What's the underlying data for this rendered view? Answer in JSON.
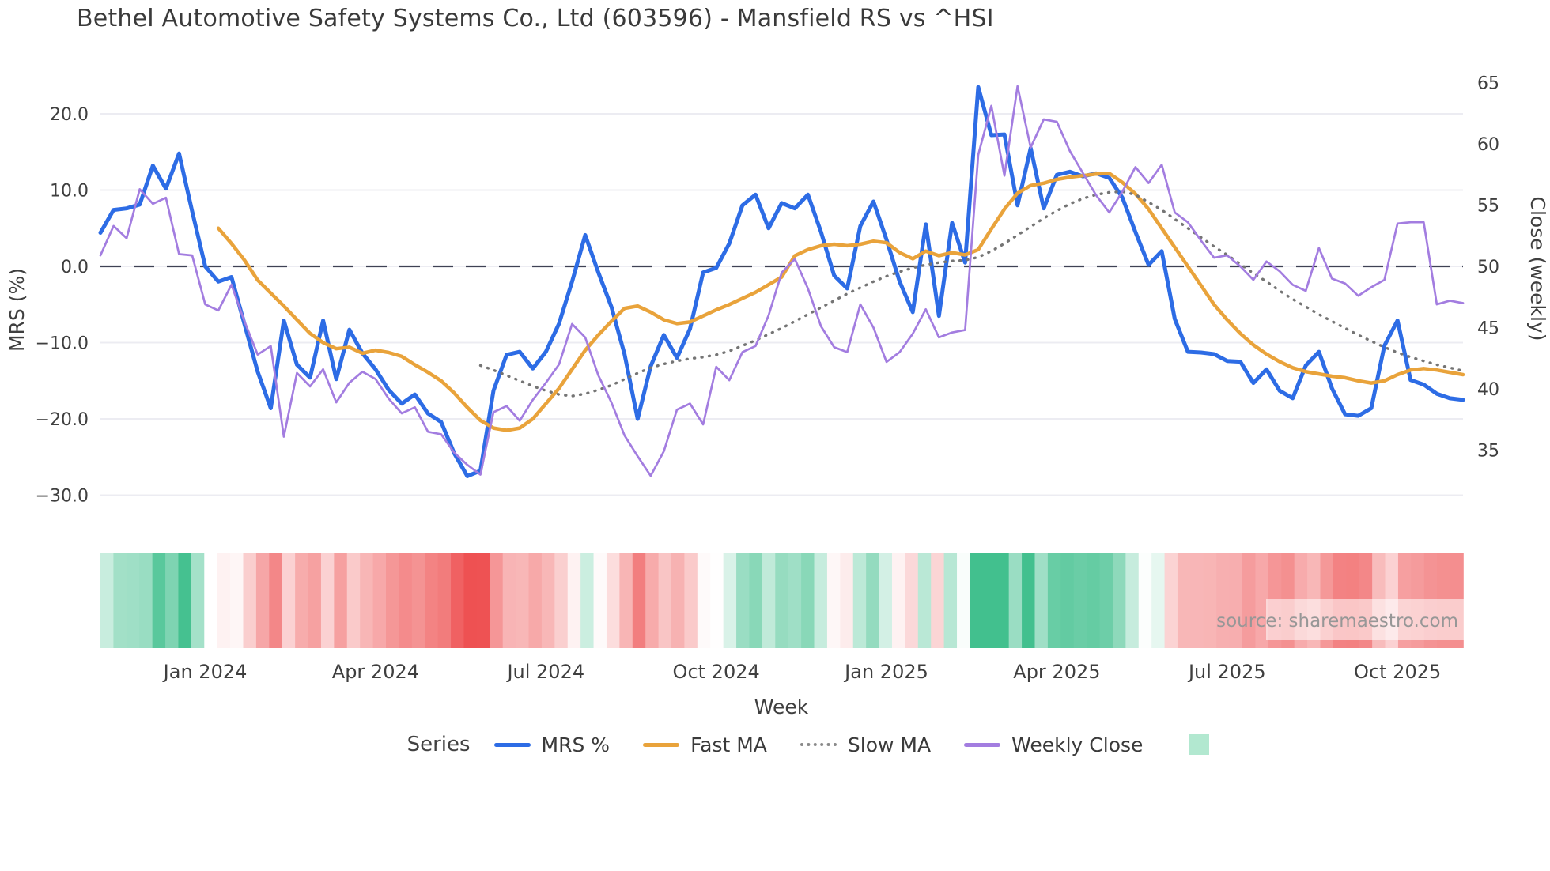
{
  "title": "Bethel Automotive Safety Systems Co., Ltd (603596) - Mansfield RS vs ^HSI",
  "source_note": "source: sharemaestro.com",
  "axes": {
    "left": {
      "title": "MRS (%)",
      "tick_labels": [
        "20.0",
        "10.0",
        "0.0",
        "−10.0",
        "−20.0",
        "−30.0"
      ],
      "tick_values": [
        20,
        10,
        0,
        -10,
        -20,
        -30
      ]
    },
    "right": {
      "title": "Close (weekly)",
      "tick_labels": [
        "65",
        "60",
        "55",
        "50",
        "45",
        "40",
        "35"
      ],
      "tick_values": [
        65,
        60,
        55,
        50,
        45,
        40,
        35
      ]
    },
    "x": {
      "title": "Week",
      "ticks": [
        {
          "week": 8,
          "label": "Jan 2024"
        },
        {
          "week": 21,
          "label": "Apr 2024"
        },
        {
          "week": 34,
          "label": "Jul 2024"
        },
        {
          "week": 47,
          "label": "Oct 2024"
        },
        {
          "week": 60,
          "label": "Jan 2025"
        },
        {
          "week": 73,
          "label": "Apr 2025"
        },
        {
          "week": 86,
          "label": "Jul 2025"
        },
        {
          "week": 99,
          "label": "Oct 2025"
        }
      ]
    }
  },
  "legend": {
    "title": "Series",
    "entries": [
      {
        "label": "MRS %",
        "style": "solid",
        "color": "#2d6ce5"
      },
      {
        "label": "Fast MA",
        "style": "solid",
        "color": "#e9a33b"
      },
      {
        "label": "Slow MA",
        "style": "dotted",
        "color": "#8a8a8a"
      },
      {
        "label": "Weekly Close",
        "style": "solid",
        "color": "#a37de0"
      }
    ],
    "heat_swatch_color": "#b2e8d0"
  },
  "chart_data": {
    "type": "line",
    "x_unit": "week_index",
    "n_weeks": 105,
    "zero_line": {
      "value": 0,
      "style": "dashed",
      "color": "#3f4254"
    },
    "grid_color": "#ececf2",
    "series": [
      {
        "name": "MRS %",
        "axis": "left",
        "color": "#2d6ce5",
        "style": "solid",
        "width": 5,
        "values": [
          4.4,
          7.4,
          7.6,
          8.1,
          13.2,
          10.2,
          14.8,
          7.2,
          0.0,
          -2.0,
          -1.4,
          -7.6,
          -13.8,
          -18.6,
          -7.1,
          -12.9,
          -14.6,
          -7.1,
          -14.8,
          -8.3,
          -11.4,
          -13.5,
          -16.2,
          -18.0,
          -16.8,
          -19.3,
          -20.4,
          -24.5,
          -27.5,
          -26.8,
          -16.3,
          -11.6,
          -11.2,
          -13.4,
          -11.2,
          -7.5,
          -2.0,
          4.1,
          -0.8,
          -5.3,
          -11.5,
          -20.0,
          -13.1,
          -9.0,
          -12.0,
          -8.2,
          -0.8,
          -0.2,
          3.0,
          8.0,
          9.4,
          5.0,
          8.3,
          7.6,
          9.4,
          4.5,
          -1.2,
          -2.9,
          5.3,
          8.5,
          3.5,
          -2.0,
          -6.0,
          5.5,
          -6.5,
          5.7,
          0.5,
          23.5,
          17.2,
          17.3,
          8.0,
          15.5,
          7.6,
          12.0,
          12.4,
          11.8,
          12.2,
          11.6,
          9.0,
          4.5,
          0.2,
          2.0,
          -6.9,
          -11.2,
          -11.3,
          -11.5,
          -12.4,
          -12.5,
          -15.3,
          -13.5,
          -16.3,
          -17.3,
          -13.0,
          -11.2,
          -16.0,
          -19.4,
          -19.6,
          -18.6,
          -10.4,
          -7.1,
          -14.9,
          -15.5,
          -16.7,
          -17.3,
          -17.5
        ]
      },
      {
        "name": "Fast MA",
        "axis": "left",
        "color": "#e9a33b",
        "style": "solid",
        "width": 4.5,
        "values": [
          null,
          null,
          null,
          null,
          null,
          null,
          null,
          null,
          null,
          5.0,
          3.0,
          0.8,
          -1.8,
          -3.5,
          -5.2,
          -7.0,
          -8.8,
          -10.0,
          -10.8,
          -10.6,
          -11.4,
          -11.0,
          -11.3,
          -11.8,
          -12.9,
          -13.9,
          -15.0,
          -16.6,
          -18.5,
          -20.2,
          -21.2,
          -21.5,
          -21.2,
          -20.0,
          -18.0,
          -16.0,
          -13.5,
          -11.0,
          -9.0,
          -7.2,
          -5.5,
          -5.2,
          -6.0,
          -7.0,
          -7.5,
          -7.3,
          -6.5,
          -5.7,
          -5.0,
          -4.2,
          -3.4,
          -2.4,
          -1.4,
          1.4,
          2.2,
          2.7,
          2.9,
          2.7,
          2.9,
          3.3,
          3.1,
          1.8,
          1.0,
          2.0,
          1.4,
          1.8,
          1.5,
          2.2,
          4.9,
          7.5,
          9.6,
          10.6,
          10.9,
          11.4,
          11.7,
          11.9,
          12.1,
          12.2,
          11.0,
          9.5,
          7.5,
          5.0,
          2.5,
          0.0,
          -2.5,
          -5.0,
          -7.0,
          -8.8,
          -10.3,
          -11.5,
          -12.5,
          -13.3,
          -13.8,
          -14.1,
          -14.4,
          -14.6,
          -15.0,
          -15.3,
          -15.0,
          -14.2,
          -13.6,
          -13.4,
          -13.6,
          -13.9,
          -14.2
        ]
      },
      {
        "name": "Slow MA",
        "axis": "left",
        "color": "#757575",
        "style": "dotted",
        "width": 3.4,
        "values": [
          null,
          null,
          null,
          null,
          null,
          null,
          null,
          null,
          null,
          null,
          null,
          null,
          null,
          null,
          null,
          null,
          null,
          null,
          null,
          null,
          null,
          null,
          null,
          null,
          null,
          null,
          null,
          null,
          null,
          -13.0,
          -13.6,
          -14.3,
          -15.0,
          -15.7,
          -16.3,
          -16.8,
          -17.0,
          -16.7,
          -16.2,
          -15.6,
          -14.8,
          -14.0,
          -13.3,
          -12.8,
          -12.4,
          -12.1,
          -11.9,
          -11.6,
          -11.1,
          -10.4,
          -9.7,
          -8.9,
          -8.1,
          -7.2,
          -6.3,
          -5.4,
          -4.5,
          -3.6,
          -2.8,
          -2.0,
          -1.3,
          -0.7,
          -0.2,
          0.2,
          0.5,
          0.7,
          0.8,
          1.2,
          2.0,
          3.0,
          4.1,
          5.2,
          6.3,
          7.3,
          8.2,
          8.9,
          9.4,
          9.7,
          9.8,
          9.4,
          8.4,
          7.4,
          6.2,
          5.0,
          3.8,
          2.6,
          1.5,
          0.3,
          -0.9,
          -2.0,
          -3.2,
          -4.3,
          -5.3,
          -6.3,
          -7.2,
          -8.1,
          -9.0,
          -9.8,
          -10.6,
          -11.3,
          -11.9,
          -12.4,
          -12.9,
          -13.3,
          -13.7
        ]
      },
      {
        "name": "Weekly Close",
        "axis": "right",
        "color": "#a37de0",
        "style": "solid",
        "width": 2.7,
        "values": [
          50.9,
          53.3,
          52.3,
          56.3,
          55.1,
          55.6,
          51.0,
          50.9,
          46.9,
          46.4,
          48.5,
          45.5,
          42.8,
          43.5,
          36.1,
          41.3,
          40.2,
          41.6,
          38.9,
          40.5,
          41.4,
          40.8,
          39.2,
          38.0,
          38.5,
          36.5,
          36.3,
          34.8,
          33.8,
          33.0,
          38.1,
          38.6,
          37.4,
          39.1,
          40.5,
          42.0,
          45.3,
          44.2,
          41.1,
          38.9,
          36.2,
          34.5,
          32.9,
          34.9,
          38.3,
          38.8,
          37.1,
          41.8,
          40.7,
          43.0,
          43.5,
          46.0,
          49.5,
          50.6,
          48.2,
          45.1,
          43.4,
          43.0,
          46.9,
          45.0,
          42.2,
          43.0,
          44.5,
          46.5,
          44.2,
          44.6,
          44.8,
          59.1,
          63.1,
          57.4,
          64.7,
          59.7,
          62.0,
          61.8,
          59.4,
          57.6,
          55.8,
          54.4,
          56.1,
          58.1,
          56.8,
          58.3,
          54.4,
          53.6,
          52.1,
          50.7,
          50.9,
          50.0,
          48.9,
          50.4,
          49.6,
          48.5,
          48.0,
          51.5,
          49.0,
          48.6,
          47.6,
          48.3,
          48.9,
          53.5,
          53.6,
          53.6,
          46.9,
          47.2,
          47.0
        ]
      }
    ],
    "heat_strip": {
      "basis": "MRS %",
      "positive_color": "#42c08e",
      "negative_color": "#ee5152",
      "neutral_color": "#ffffff",
      "positive_saturation_at": 15,
      "negative_saturation_at": 27
    }
  }
}
